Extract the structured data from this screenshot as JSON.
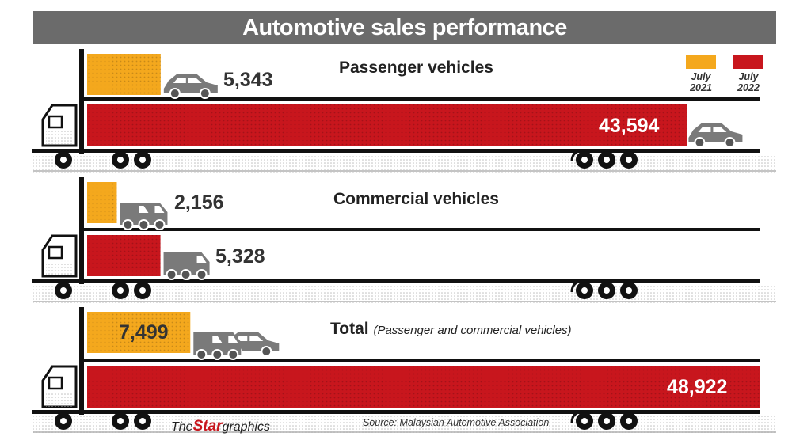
{
  "title": "Automotive sales performance",
  "colors": {
    "y2021": "#f4a81d",
    "y2022": "#c8161d",
    "title_bg": "#6b6b6b"
  },
  "legend": [
    {
      "line1": "July",
      "line2": "2021",
      "color": "#f4a81d"
    },
    {
      "line1": "July",
      "line2": "2022",
      "color": "#c8161d"
    }
  ],
  "chart_data": {
    "type": "bar",
    "orientation": "horizontal",
    "categories": [
      "Passenger vehicles",
      "Commercial vehicles",
      "Total"
    ],
    "series": [
      {
        "name": "July 2021",
        "values": [
          5343,
          2156,
          7499
        ]
      },
      {
        "name": "July 2022",
        "values": [
          43594,
          5328,
          48922
        ]
      }
    ],
    "labels": {
      "2021": [
        "5,343",
        "2,156",
        "7,499"
      ],
      "2022": [
        "43,594",
        "5,328",
        "48,922"
      ]
    },
    "subtitles": [
      "",
      "",
      "(Passenger and commercial vehicles)"
    ],
    "xlim": [
      0,
      48922
    ]
  },
  "footer": {
    "brand_a": "The",
    "brand_b": "Star",
    "brand_c": "graphics",
    "source": "Source: Malaysian Automotive Association"
  }
}
